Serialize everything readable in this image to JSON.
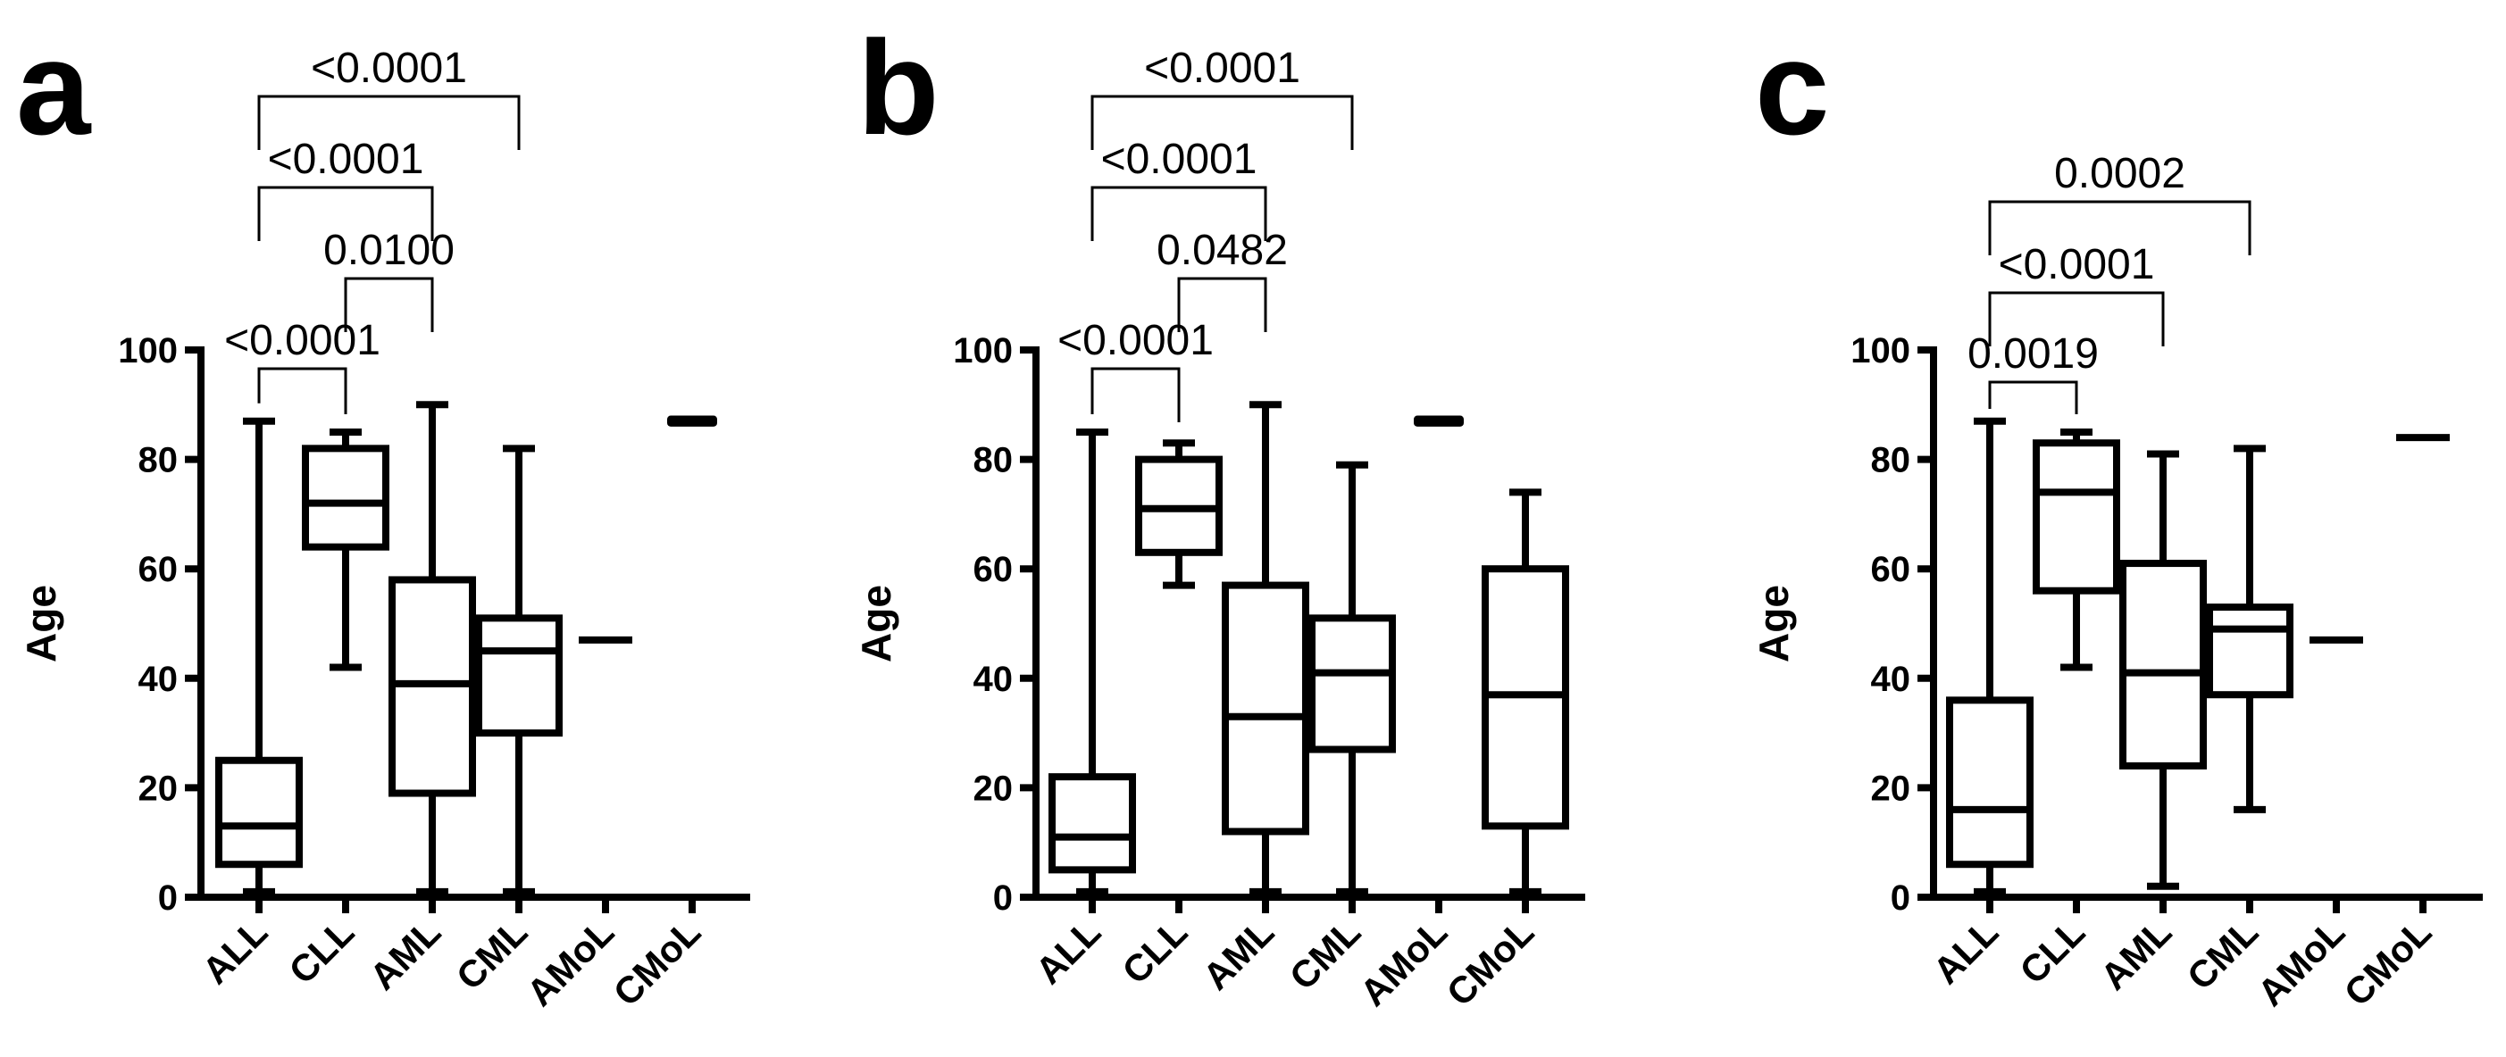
{
  "chart_data": [
    {
      "type": "box",
      "panel_label": "a",
      "ylabel": "Age",
      "ylim": [
        0,
        100
      ],
      "yticks": [
        "0",
        "20",
        "40",
        "60",
        "80",
        "100"
      ],
      "categories": [
        "ALL",
        "CLL",
        "AML",
        "CML",
        "AMoL",
        "CMoL"
      ],
      "boxes": [
        {
          "category": "ALL",
          "min": 1,
          "q1": 6,
          "median": 13,
          "q3": 25,
          "max": 87
        },
        {
          "category": "CLL",
          "min": 42,
          "q1": 64,
          "median": 72,
          "q3": 82,
          "max": 85
        },
        {
          "category": "AML",
          "min": 1,
          "q1": 19,
          "median": 39,
          "q3": 58,
          "max": 90
        },
        {
          "category": "CML",
          "min": 1,
          "q1": 30,
          "median": 45,
          "q3": 51,
          "max": 82
        },
        {
          "category": "AMoL",
          "min": 47,
          "q1": 47,
          "median": 47,
          "q3": 47,
          "max": 47
        },
        {
          "category": "CMoL",
          "min": 86,
          "q1": 86,
          "median": 87,
          "q3": 88,
          "max": 88
        }
      ],
      "comparisons": [
        {
          "from": "ALL",
          "to": "CLL",
          "p": "<0.0001"
        },
        {
          "from": "CLL",
          "to": "AML",
          "p": "0.0100"
        },
        {
          "from": "ALL",
          "to": "AML",
          "p": "<0.0001"
        },
        {
          "from": "ALL",
          "to": "CML",
          "p": "<0.0001"
        }
      ]
    },
    {
      "type": "box",
      "panel_label": "b",
      "ylabel": "Age",
      "ylim": [
        0,
        100
      ],
      "yticks": [
        "0",
        "20",
        "40",
        "60",
        "80",
        "100"
      ],
      "categories": [
        "ALL",
        "CLL",
        "AML",
        "CML",
        "AMoL",
        "CMoL"
      ],
      "boxes": [
        {
          "category": "ALL",
          "min": 1,
          "q1": 5,
          "median": 11,
          "q3": 22,
          "max": 85
        },
        {
          "category": "CLL",
          "min": 57,
          "q1": 63,
          "median": 71,
          "q3": 80,
          "max": 83
        },
        {
          "category": "AML",
          "min": 1,
          "q1": 12,
          "median": 33,
          "q3": 57,
          "max": 90
        },
        {
          "category": "CML",
          "min": 1,
          "q1": 27,
          "median": 41,
          "q3": 51,
          "max": 79
        },
        {
          "category": "AMoL",
          "min": 86,
          "q1": 86,
          "median": 87,
          "q3": 88,
          "max": 88
        },
        {
          "category": "CMoL",
          "min": 1,
          "q1": 13,
          "median": 37,
          "q3": 60,
          "max": 74
        }
      ],
      "comparisons": [
        {
          "from": "ALL",
          "to": "CLL",
          "p": "<0.0001"
        },
        {
          "from": "CLL",
          "to": "AML",
          "p": "0.0482"
        },
        {
          "from": "ALL",
          "to": "AML",
          "p": "<0.0001"
        },
        {
          "from": "ALL",
          "to": "CML",
          "p": "<0.0001"
        }
      ]
    },
    {
      "type": "box",
      "panel_label": "c",
      "ylabel": "Age",
      "ylim": [
        0,
        100
      ],
      "yticks": [
        "0",
        "20",
        "40",
        "60",
        "80",
        "100"
      ],
      "categories": [
        "ALL",
        "CLL",
        "AML",
        "CML",
        "AMoL",
        "CMoL"
      ],
      "boxes": [
        {
          "category": "ALL",
          "min": 1,
          "q1": 6,
          "median": 16,
          "q3": 36,
          "max": 87
        },
        {
          "category": "CLL",
          "min": 42,
          "q1": 56,
          "median": 74,
          "q3": 83,
          "max": 85
        },
        {
          "category": "AML",
          "min": 2,
          "q1": 24,
          "median": 41,
          "q3": 61,
          "max": 81
        },
        {
          "category": "CML",
          "min": 16,
          "q1": 37,
          "median": 49,
          "q3": 53,
          "max": 82
        },
        {
          "category": "AMoL",
          "min": 47,
          "q1": 47,
          "median": 47,
          "q3": 47,
          "max": 47
        },
        {
          "category": "CMoL",
          "min": 84,
          "q1": 84,
          "median": 84,
          "q3": 84,
          "max": 84
        }
      ],
      "comparisons": [
        {
          "from": "ALL",
          "to": "CLL",
          "p": "0.0019"
        },
        {
          "from": "ALL",
          "to": "AML",
          "p": "<0.0001"
        },
        {
          "from": "ALL",
          "to": "CML",
          "p": "0.0002"
        }
      ]
    }
  ]
}
